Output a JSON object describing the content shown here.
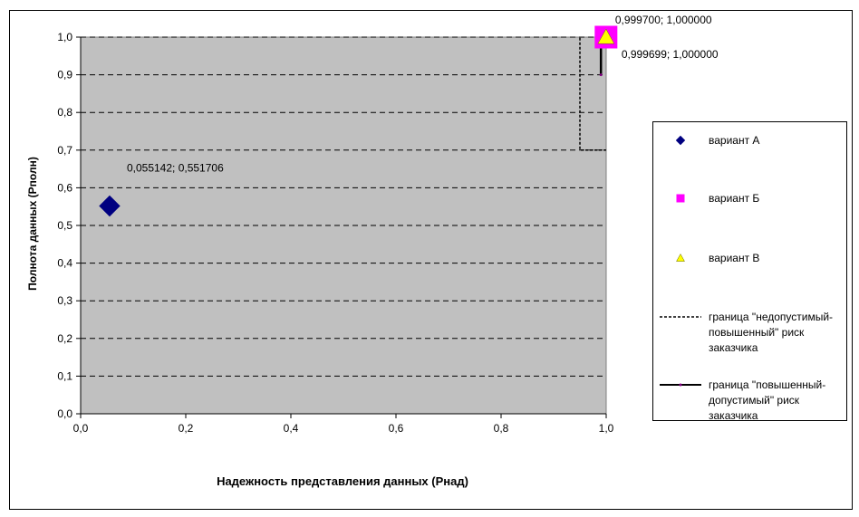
{
  "chart_data": {
    "type": "scatter",
    "xlabel": "Надежность представления данных (Рнад)",
    "ylabel": "Полнота данных (Рполн)",
    "xlim": [
      0,
      1
    ],
    "ylim": [
      0,
      1
    ],
    "x_ticks": [
      "0,0",
      "0,2",
      "0,4",
      "0,6",
      "0,8",
      "1,0"
    ],
    "y_ticks": [
      "0,0",
      "0,1",
      "0,2",
      "0,3",
      "0,4",
      "0,5",
      "0,6",
      "0,7",
      "0,8",
      "0,9",
      "1,0"
    ],
    "grid": "horizontal dashed",
    "plot_background": "#c0c0c0",
    "legend_position": "right",
    "series": [
      {
        "name": "вариант А",
        "marker": "diamond",
        "color": "#000080",
        "points": [
          {
            "x": 0.055142,
            "y": 0.551706,
            "label": "0,055142; 0,551706"
          }
        ]
      },
      {
        "name": "вариант Б",
        "marker": "square",
        "color": "#ff00ff",
        "points": [
          {
            "x": 0.999699,
            "y": 1.0,
            "label": "0,999699; 1,000000"
          }
        ]
      },
      {
        "name": "вариант В",
        "marker": "triangle",
        "color": "#ffff00",
        "points": [
          {
            "x": 0.9997,
            "y": 1.0,
            "label": "0,999700; 1,000000"
          }
        ]
      },
      {
        "name": "граница \"недопустимый-повышенный\" риск заказчика",
        "marker": "dotted-line",
        "color": "#000000",
        "points": [
          {
            "x": 1.0,
            "y": 0.7
          },
          {
            "x": 0.95,
            "y": 0.7
          },
          {
            "x": 0.95,
            "y": 1.0
          }
        ]
      },
      {
        "name": "граница \"повышенный-допустимый\" риск заказчика",
        "marker": "solid-line",
        "color": "#000000",
        "points": [
          {
            "x": 0.99,
            "y": 0.9
          },
          {
            "x": 0.99,
            "y": 1.0
          }
        ]
      }
    ],
    "legend": [
      {
        "text": "вариант А",
        "lines": [
          "вариант А"
        ]
      },
      {
        "text": "вариант Б",
        "lines": [
          "вариант Б"
        ]
      },
      {
        "text": "вариант В",
        "lines": [
          "вариант В"
        ]
      },
      {
        "text": "граница \"недопустимый-повышенный\" риск заказчика",
        "lines": [
          "граница \"недопустимый-",
          "повышенный\" риск",
          "заказчика"
        ]
      },
      {
        "text": "граница \"повышенный-допустимый\" риск заказчика",
        "lines": [
          "граница \"повышенный-",
          "допустимый\" риск",
          "заказчика"
        ]
      }
    ]
  }
}
